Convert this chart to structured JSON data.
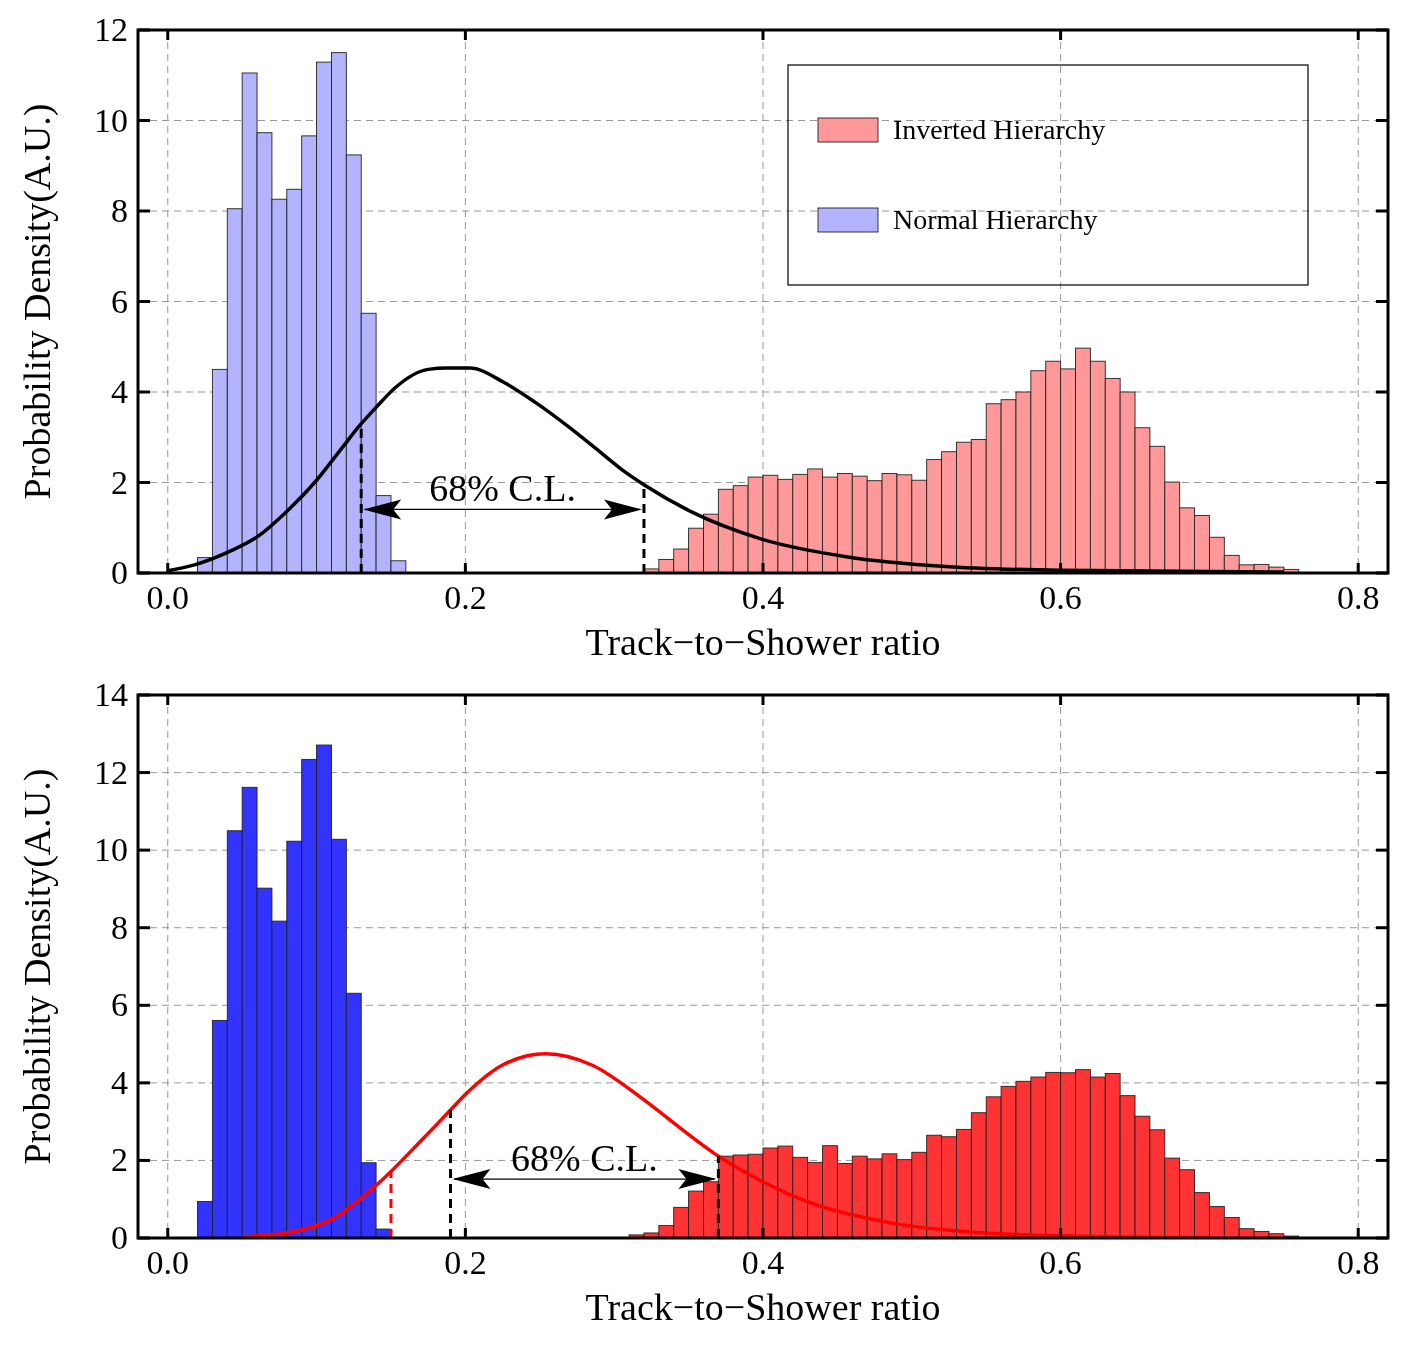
{
  "chart_data": [
    {
      "type": "histogram",
      "xlabel": "Track−to−Shower ratio",
      "ylabel": "Probability Density(A.U.)",
      "xlim": [
        -0.02,
        0.82
      ],
      "xticks": [
        {
          "value": 0,
          "label": "0.0"
        },
        0.2,
        0.4,
        0.6,
        0.8
      ],
      "ylim": [
        0,
        12
      ],
      "yticks": [
        0,
        2,
        4,
        6,
        8,
        10,
        12
      ],
      "grid": true,
      "legend": "top right",
      "series": [
        {
          "name": "Normal Hierarchy",
          "color": "#b3b3ff",
          "bins": [
            0.02,
            0.03,
            0.04,
            0.05,
            0.06,
            0.07,
            0.08,
            0.09,
            0.1,
            0.11,
            0.12,
            0.13,
            0.14,
            0.15,
            0.16
          ],
          "values": [
            0.34,
            4.5,
            8.05,
            11.05,
            9.73,
            8.26,
            8.48,
            9.66,
            11.29,
            11.5,
            9.24,
            5.74,
            1.71,
            0.27
          ]
        },
        {
          "name": "Inverted Hierarchy",
          "color": "#ff9999",
          "bins": [
            0.32,
            0.33,
            0.34,
            0.35,
            0.36,
            0.37,
            0.38,
            0.39,
            0.4,
            0.41,
            0.42,
            0.43,
            0.44,
            0.45,
            0.46,
            0.47,
            0.48,
            0.49,
            0.5,
            0.51,
            0.52,
            0.53,
            0.54,
            0.55,
            0.56,
            0.57,
            0.58,
            0.59,
            0.6,
            0.61,
            0.62,
            0.63,
            0.64,
            0.65,
            0.66,
            0.67,
            0.68,
            0.69,
            0.7,
            0.71,
            0.72,
            0.73,
            0.74,
            0.75,
            0.76
          ],
          "values": [
            0.09,
            0.3,
            0.53,
            0.99,
            1.3,
            1.85,
            1.93,
            2.12,
            2.16,
            2.07,
            2.18,
            2.3,
            2.12,
            2.2,
            2.14,
            2.04,
            2.2,
            2.17,
            2.05,
            2.51,
            2.68,
            2.89,
            2.95,
            3.74,
            3.83,
            4.0,
            4.47,
            4.68,
            4.51,
            4.97,
            4.68,
            4.3,
            4.0,
            3.21,
            2.8,
            2.01,
            1.44,
            1.27,
            0.79,
            0.39,
            0.18,
            0.19,
            0.13,
            0.08
          ]
        },
        {
          "type": "line",
          "color": "#000000",
          "x": [
            0,
            0.018,
            0.043,
            0.061,
            0.078,
            0.1,
            0.117,
            0.129,
            0.14,
            0.153,
            0.175,
            0.188,
            0.203,
            0.226,
            0.247,
            0.269,
            0.29,
            0.307,
            0.32,
            0.352,
            0.398,
            0.458,
            0.52,
            0.6,
            0.75
          ],
          "values": [
            0.05,
            0.18,
            0.5,
            0.82,
            1.3,
            2.05,
            2.76,
            3.26,
            3.66,
            4.1,
            4.5,
            4.53,
            4.53,
            4.21,
            3.77,
            3.24,
            2.69,
            2.24,
            1.95,
            1.35,
            0.76,
            0.35,
            0.15,
            0.06,
            0.02
          ]
        }
      ],
      "ref_lines": [
        {
          "axis": "x",
          "value": 0.13,
          "color": "#000000",
          "line_style": "dashed"
        },
        {
          "axis": "x",
          "value": 0.32,
          "color": "#000000",
          "line_style": "dashed"
        }
      ],
      "annotations": [
        "68% C.L."
      ]
    },
    {
      "type": "histogram",
      "xlabel": "Track−to−Shower ratio",
      "ylabel": "Probability Density(A.U.)",
      "xlim": [
        -0.02,
        0.82
      ],
      "xticks": [
        {
          "value": 0,
          "label": "0.0"
        },
        0.2,
        0.4,
        0.6,
        0.8
      ],
      "ylim": [
        0,
        14
      ],
      "yticks": [
        0,
        2,
        4,
        6,
        8,
        10,
        12,
        14
      ],
      "grid": true,
      "legend": false,
      "series": [
        {
          "color": "#3333ff",
          "bins": [
            0.02,
            0.03,
            0.04,
            0.05,
            0.06,
            0.07,
            0.08,
            0.09,
            0.1,
            0.11,
            0.12,
            0.13,
            0.14,
            0.15
          ],
          "values": [
            0.94,
            5.61,
            10.5,
            11.62,
            9.02,
            8.17,
            10.23,
            12.34,
            12.71,
            10.28,
            6.31,
            1.94,
            0.23
          ]
        },
        {
          "color": "#ff3333",
          "bins": [
            0.31,
            0.32,
            0.33,
            0.34,
            0.35,
            0.36,
            0.37,
            0.38,
            0.39,
            0.4,
            0.41,
            0.42,
            0.43,
            0.44,
            0.45,
            0.46,
            0.47,
            0.48,
            0.49,
            0.5,
            0.51,
            0.52,
            0.53,
            0.54,
            0.55,
            0.56,
            0.57,
            0.58,
            0.59,
            0.6,
            0.61,
            0.62,
            0.63,
            0.64,
            0.65,
            0.66,
            0.67,
            0.68,
            0.69,
            0.7,
            0.71,
            0.72,
            0.73,
            0.74,
            0.75,
            0.76
          ],
          "values": [
            0.08,
            0.13,
            0.32,
            0.79,
            1.21,
            1.45,
            2.11,
            2.14,
            2.16,
            2.32,
            2.37,
            2.08,
            1.95,
            2.38,
            1.92,
            2.11,
            2.04,
            2.17,
            2.02,
            2.21,
            2.65,
            2.61,
            2.8,
            3.23,
            3.64,
            3.91,
            4.04,
            4.15,
            4.27,
            4.26,
            4.34,
            4.15,
            4.24,
            3.67,
            3.14,
            2.79,
            2.06,
            1.76,
            1.17,
            0.81,
            0.53,
            0.24,
            0.17,
            0.11,
            0.05
          ]
        },
        {
          "type": "line",
          "color": "#ff0000",
          "x": [
            0.05,
            0.08,
            0.111,
            0.141,
            0.172,
            0.19,
            0.2,
            0.225,
            0.254,
            0.285,
            0.318,
            0.351,
            0.37,
            0.4,
            0.433,
            0.483,
            0.549,
            0.62,
            0.7
          ],
          "values": [
            0.03,
            0.13,
            0.5,
            1.39,
            2.58,
            3.3,
            3.7,
            4.46,
            4.75,
            4.46,
            3.62,
            2.64,
            2.11,
            1.45,
            0.89,
            0.41,
            0.13,
            0.04,
            0.01
          ]
        }
      ],
      "ref_lines": [
        {
          "axis": "x",
          "value": 0.15,
          "color": "#ff0000",
          "line_style": "dashed"
        },
        {
          "axis": "x",
          "value": 0.19,
          "color": "#000000",
          "line_style": "dashed"
        },
        {
          "axis": "x",
          "value": 0.37,
          "color": "#000000",
          "line_style": "dashed"
        }
      ],
      "annotations": [
        "68% C.L."
      ]
    }
  ]
}
